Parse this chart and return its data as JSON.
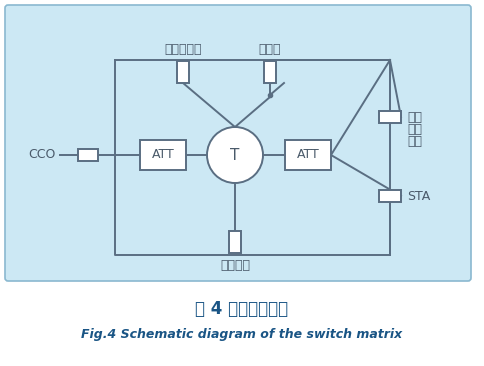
{
  "bg_color": "#cce8f4",
  "line_color": "#5a6e82",
  "text_color": "#4a5a6a",
  "title_zh": "图 4 开关矩阵原理",
  "title_en": "Fig.4 Schematic diagram of the switch matrix",
  "labels": {
    "cco": "CCO",
    "att_left": "ATT",
    "T": "T",
    "att_right": "ATT",
    "signal_analyzer": "信号分析仪",
    "signal_source": "信号源",
    "signal_matrix": "信号矩阵",
    "transparent_line1": "透明",
    "transparent_line2": "收发",
    "transparent_line3": "设备",
    "sta": "STA"
  }
}
